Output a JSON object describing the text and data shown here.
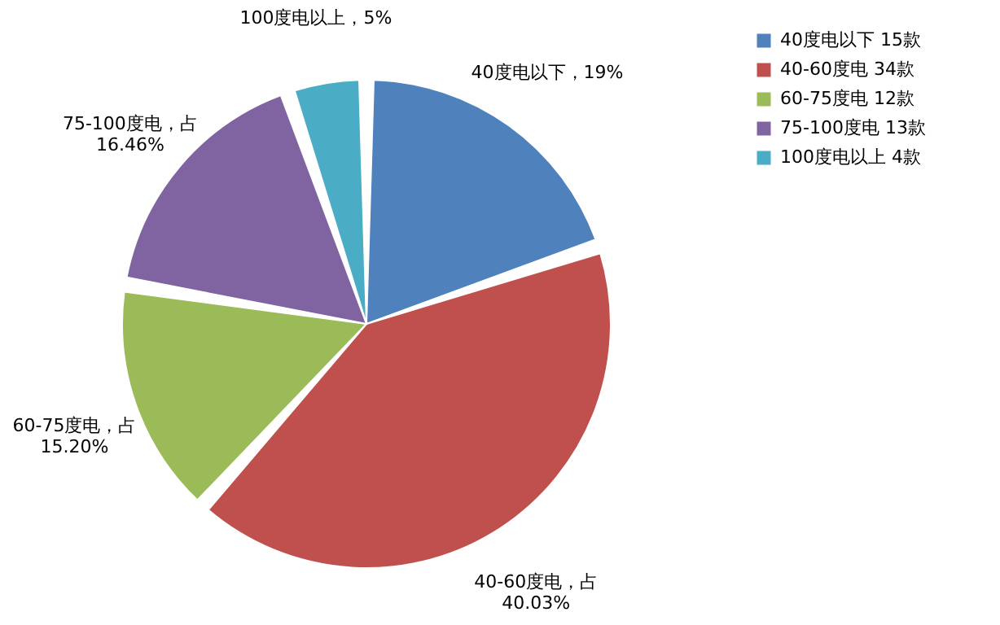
{
  "chart_data": {
    "type": "pie",
    "categories": [
      "40度电以下 15款",
      "40-60度电 34款",
      "60-75度电 12款",
      "75-100度电 13款",
      "100度电以上 4款"
    ],
    "values": [
      19,
      40.03,
      15.2,
      16.46,
      5
    ],
    "colors": [
      "#4f81bd",
      "#c0504d",
      "#9bbb59",
      "#8064a2",
      "#4bacc6"
    ],
    "value_labels": [
      "40度电以下，19%",
      "40-60度电，占\n40.03%",
      "60-75度电，占\n15.20%",
      "75-100度电，占\n16.46%",
      "100度电以上，5%"
    ],
    "legend": "right"
  }
}
